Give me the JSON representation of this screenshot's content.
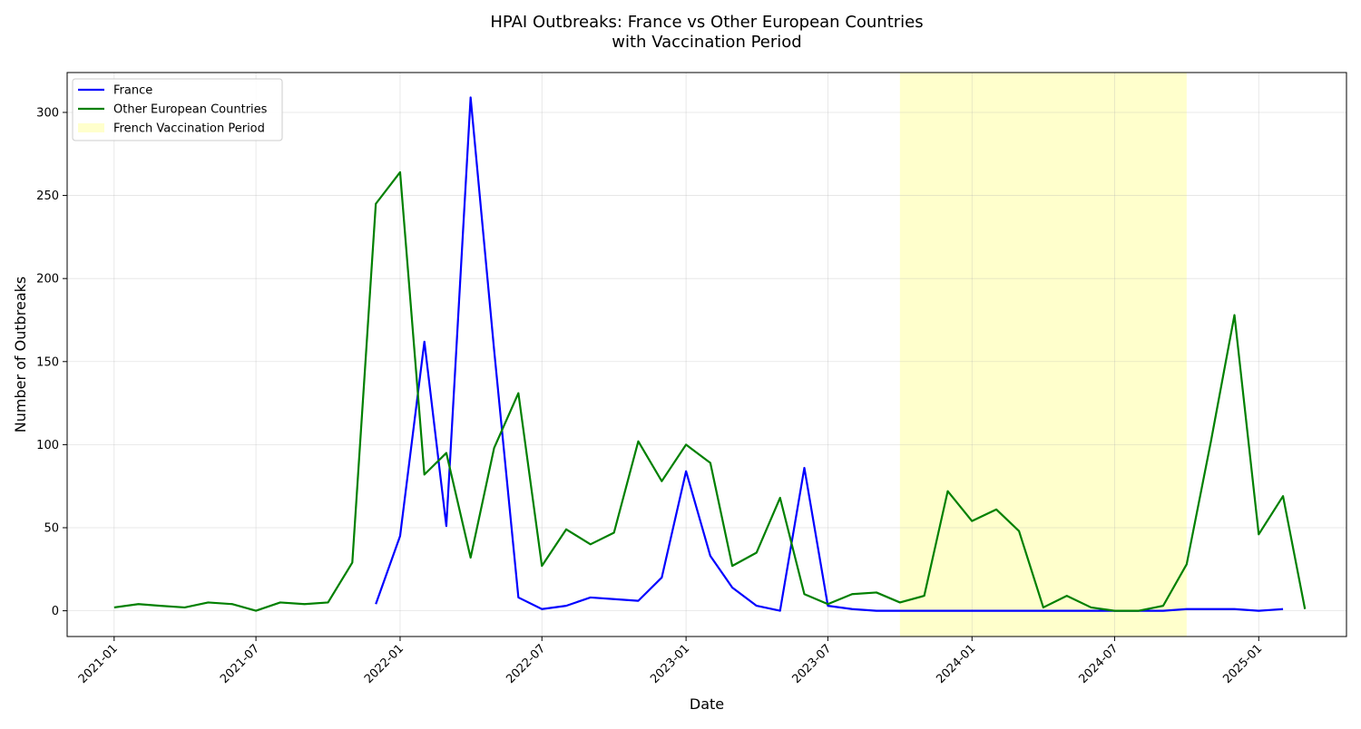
{
  "chart_data": {
    "type": "line",
    "title_lines": [
      "HPAI Outbreaks: France vs Other European Countries",
      "with Vaccination Period"
    ],
    "xlabel": "Date",
    "ylabel": "Number of Outbreaks",
    "xlim": [
      "2020-11-02",
      "2025-04-23"
    ],
    "ylim": [
      -15.5,
      324
    ],
    "x_ticks": [
      "2021-01",
      "2021-07",
      "2022-01",
      "2022-07",
      "2023-01",
      "2023-07",
      "2024-01",
      "2024-07",
      "2025-01"
    ],
    "y_ticks": [
      0,
      50,
      100,
      150,
      200,
      250,
      300
    ],
    "grid": true,
    "legend_position": "top-left",
    "shaded_span": {
      "name": "French Vaccination Period",
      "start": "2023-10-01",
      "end": "2024-10-01",
      "color": "#ffffcc"
    },
    "series": [
      {
        "name": "France",
        "color": "#0000ff",
        "points": [
          [
            "2021-12-01",
            4
          ],
          [
            "2022-01-01",
            45
          ],
          [
            "2022-02-01",
            162
          ],
          [
            "2022-03-01",
            51
          ],
          [
            "2022-04-01",
            309
          ],
          [
            "2022-05-01",
            157
          ],
          [
            "2022-06-01",
            8
          ],
          [
            "2022-07-01",
            1
          ],
          [
            "2022-08-01",
            3
          ],
          [
            "2022-09-01",
            8
          ],
          [
            "2022-10-01",
            7
          ],
          [
            "2022-11-01",
            6
          ],
          [
            "2022-12-01",
            20
          ],
          [
            "2023-01-01",
            84
          ],
          [
            "2023-02-01",
            33
          ],
          [
            "2023-03-01",
            14
          ],
          [
            "2023-04-01",
            3
          ],
          [
            "2023-05-01",
            0
          ],
          [
            "2023-06-01",
            86
          ],
          [
            "2023-07-01",
            3
          ],
          [
            "2023-08-01",
            1
          ],
          [
            "2023-09-01",
            0
          ],
          [
            "2023-10-01",
            0
          ],
          [
            "2023-11-01",
            0
          ],
          [
            "2023-12-01",
            0
          ],
          [
            "2024-01-01",
            0
          ],
          [
            "2024-02-01",
            0
          ],
          [
            "2024-03-01",
            0
          ],
          [
            "2024-04-01",
            0
          ],
          [
            "2024-05-01",
            0
          ],
          [
            "2024-06-01",
            0
          ],
          [
            "2024-07-01",
            0
          ],
          [
            "2024-08-01",
            0
          ],
          [
            "2024-09-01",
            0
          ],
          [
            "2024-10-01",
            1
          ],
          [
            "2024-11-01",
            1
          ],
          [
            "2024-12-01",
            1
          ],
          [
            "2025-01-01",
            0
          ],
          [
            "2025-02-01",
            1
          ]
        ]
      },
      {
        "name": "Other European Countries",
        "color": "#008000",
        "points": [
          [
            "2021-01-01",
            2
          ],
          [
            "2021-02-01",
            4
          ],
          [
            "2021-03-01",
            3
          ],
          [
            "2021-04-01",
            2
          ],
          [
            "2021-05-01",
            5
          ],
          [
            "2021-06-01",
            4
          ],
          [
            "2021-07-01",
            0
          ],
          [
            "2021-08-01",
            5
          ],
          [
            "2021-09-01",
            4
          ],
          [
            "2021-10-01",
            5
          ],
          [
            "2021-11-01",
            29
          ],
          [
            "2021-12-01",
            245
          ],
          [
            "2022-01-01",
            264
          ],
          [
            "2022-02-01",
            82
          ],
          [
            "2022-03-01",
            95
          ],
          [
            "2022-04-01",
            32
          ],
          [
            "2022-05-01",
            98
          ],
          [
            "2022-06-01",
            131
          ],
          [
            "2022-07-01",
            27
          ],
          [
            "2022-08-01",
            49
          ],
          [
            "2022-09-01",
            40
          ],
          [
            "2022-10-01",
            47
          ],
          [
            "2022-11-01",
            102
          ],
          [
            "2022-12-01",
            78
          ],
          [
            "2023-01-01",
            100
          ],
          [
            "2023-02-01",
            89
          ],
          [
            "2023-03-01",
            27
          ],
          [
            "2023-04-01",
            35
          ],
          [
            "2023-05-01",
            68
          ],
          [
            "2023-06-01",
            10
          ],
          [
            "2023-07-01",
            4
          ],
          [
            "2023-08-01",
            10
          ],
          [
            "2023-09-01",
            11
          ],
          [
            "2023-10-01",
            5
          ],
          [
            "2023-11-01",
            9
          ],
          [
            "2023-12-01",
            72
          ],
          [
            "2024-01-01",
            54
          ],
          [
            "2024-02-01",
            61
          ],
          [
            "2024-03-01",
            48
          ],
          [
            "2024-04-01",
            2
          ],
          [
            "2024-05-01",
            9
          ],
          [
            "2024-06-01",
            2
          ],
          [
            "2024-07-01",
            0
          ],
          [
            "2024-08-01",
            0
          ],
          [
            "2024-09-01",
            3
          ],
          [
            "2024-10-01",
            28
          ],
          [
            "2024-11-01",
            102
          ],
          [
            "2024-12-01",
            178
          ],
          [
            "2025-01-01",
            46
          ],
          [
            "2025-02-01",
            69
          ],
          [
            "2025-03-01",
            1
          ]
        ]
      }
    ]
  }
}
